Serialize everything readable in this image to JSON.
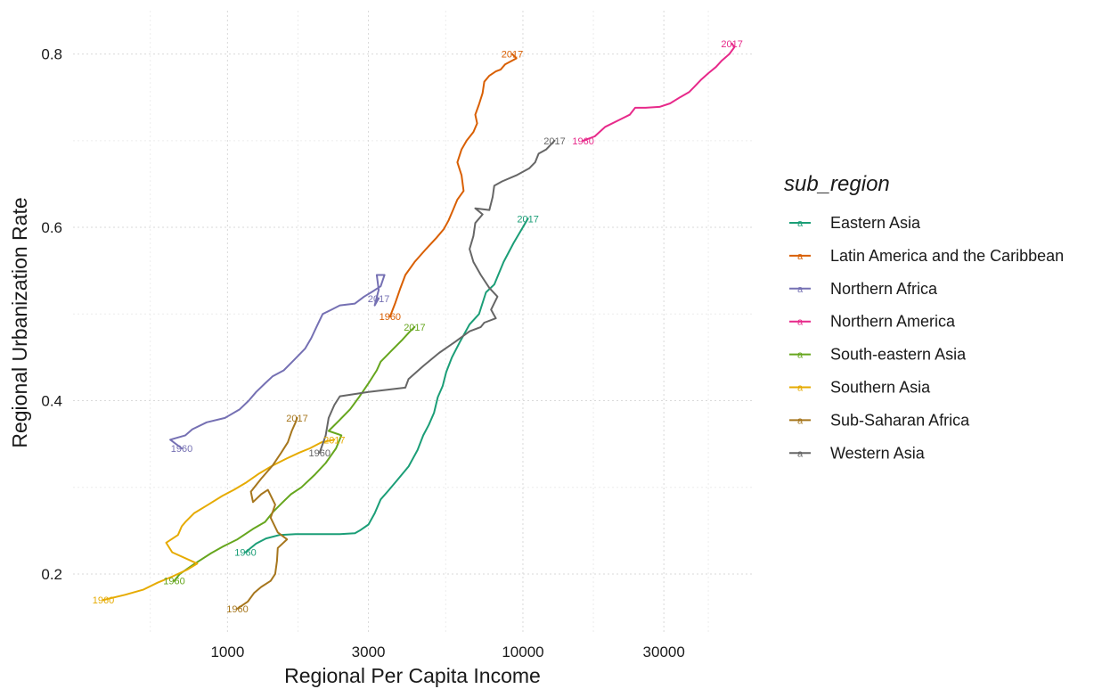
{
  "chart_data": {
    "type": "line",
    "xlabel": "Regional Per Capita Income",
    "ylabel": "Regional Urbanization Rate",
    "x_scale": "log10",
    "xlim": [
      300,
      60000
    ],
    "ylim": [
      0.13,
      0.85
    ],
    "x_ticks": [
      1000,
      3000,
      10000,
      30000
    ],
    "x_tick_labels": [
      "1000",
      "3000",
      "10000",
      "30000"
    ],
    "y_ticks": [
      0.2,
      0.4,
      0.6,
      0.8
    ],
    "y_tick_labels": [
      "0.2",
      "0.4",
      "0.6",
      "0.8"
    ],
    "grid": true,
    "legend": {
      "title": "sub_region",
      "position": "right"
    },
    "series": [
      {
        "name": "Eastern Asia",
        "color": "#1B9E77",
        "start_label": "1960",
        "end_label": "2017",
        "points": [
          [
            1150,
            0.225
          ],
          [
            1250,
            0.235
          ],
          [
            1350,
            0.241
          ],
          [
            1500,
            0.245
          ],
          [
            1700,
            0.246
          ],
          [
            2000,
            0.246
          ],
          [
            2400,
            0.246
          ],
          [
            2700,
            0.247
          ],
          [
            2800,
            0.25
          ],
          [
            3000,
            0.257
          ],
          [
            3150,
            0.27
          ],
          [
            3300,
            0.286
          ],
          [
            3500,
            0.296
          ],
          [
            3750,
            0.308
          ],
          [
            4100,
            0.324
          ],
          [
            4400,
            0.343
          ],
          [
            4600,
            0.36
          ],
          [
            4800,
            0.372
          ],
          [
            5000,
            0.386
          ],
          [
            5150,
            0.404
          ],
          [
            5350,
            0.417
          ],
          [
            5500,
            0.433
          ],
          [
            5750,
            0.45
          ],
          [
            6100,
            0.467
          ],
          [
            6600,
            0.488
          ],
          [
            7100,
            0.5
          ],
          [
            7500,
            0.525
          ],
          [
            8000,
            0.534
          ],
          [
            8600,
            0.56
          ],
          [
            9300,
            0.582
          ],
          [
            10400,
            0.61
          ]
        ]
      },
      {
        "name": "Latin America and the Caribbean",
        "color": "#D95F02",
        "start_label": "1960",
        "end_label": "2017",
        "points": [
          [
            3550,
            0.497
          ],
          [
            3700,
            0.513
          ],
          [
            3850,
            0.53
          ],
          [
            4000,
            0.545
          ],
          [
            4300,
            0.56
          ],
          [
            4700,
            0.575
          ],
          [
            5100,
            0.588
          ],
          [
            5400,
            0.598
          ],
          [
            5600,
            0.608
          ],
          [
            5800,
            0.62
          ],
          [
            6000,
            0.632
          ],
          [
            6300,
            0.642
          ],
          [
            6200,
            0.66
          ],
          [
            6000,
            0.675
          ],
          [
            6200,
            0.69
          ],
          [
            6450,
            0.7
          ],
          [
            6800,
            0.71
          ],
          [
            7000,
            0.72
          ],
          [
            6900,
            0.73
          ],
          [
            7100,
            0.742
          ],
          [
            7300,
            0.755
          ],
          [
            7400,
            0.768
          ],
          [
            7700,
            0.775
          ],
          [
            8100,
            0.78
          ],
          [
            8400,
            0.782
          ],
          [
            8700,
            0.788
          ],
          [
            9500,
            0.795
          ],
          [
            9200,
            0.8
          ]
        ]
      },
      {
        "name": "Northern Africa",
        "color": "#7570B3",
        "start_label": "1960",
        "end_label": "2017",
        "points": [
          [
            700,
            0.345
          ],
          [
            640,
            0.355
          ],
          [
            720,
            0.36
          ],
          [
            760,
            0.367
          ],
          [
            850,
            0.375
          ],
          [
            980,
            0.38
          ],
          [
            1100,
            0.39
          ],
          [
            1180,
            0.4
          ],
          [
            1250,
            0.41
          ],
          [
            1340,
            0.42
          ],
          [
            1420,
            0.428
          ],
          [
            1550,
            0.435
          ],
          [
            1680,
            0.447
          ],
          [
            1830,
            0.46
          ],
          [
            1920,
            0.472
          ],
          [
            2000,
            0.485
          ],
          [
            2100,
            0.5
          ],
          [
            2250,
            0.505
          ],
          [
            2400,
            0.51
          ],
          [
            2700,
            0.512
          ],
          [
            2900,
            0.52
          ],
          [
            3100,
            0.526
          ],
          [
            3300,
            0.532
          ],
          [
            3400,
            0.545
          ],
          [
            3200,
            0.545
          ],
          [
            3250,
            0.528
          ],
          [
            3150,
            0.51
          ],
          [
            3250,
            0.518
          ]
        ]
      },
      {
        "name": "Northern America",
        "color": "#E7298A",
        "start_label": "1960",
        "end_label": "2017",
        "points": [
          [
            16000,
            0.7
          ],
          [
            17500,
            0.705
          ],
          [
            19000,
            0.716
          ],
          [
            21500,
            0.725
          ],
          [
            23000,
            0.73
          ],
          [
            24000,
            0.738
          ],
          [
            26000,
            0.738
          ],
          [
            29000,
            0.739
          ],
          [
            31500,
            0.743
          ],
          [
            34000,
            0.75
          ],
          [
            36500,
            0.756
          ],
          [
            38000,
            0.762
          ],
          [
            40000,
            0.77
          ],
          [
            42500,
            0.778
          ],
          [
            45000,
            0.785
          ],
          [
            47000,
            0.792
          ],
          [
            50000,
            0.8
          ],
          [
            52000,
            0.808
          ],
          [
            51000,
            0.812
          ]
        ]
      },
      {
        "name": "South-eastern Asia",
        "color": "#66A61E",
        "start_label": "1960",
        "end_label": "2017",
        "points": [
          [
            660,
            0.192
          ],
          [
            690,
            0.2
          ],
          [
            760,
            0.21
          ],
          [
            880,
            0.224
          ],
          [
            970,
            0.232
          ],
          [
            1080,
            0.24
          ],
          [
            1220,
            0.252
          ],
          [
            1340,
            0.26
          ],
          [
            1430,
            0.272
          ],
          [
            1530,
            0.282
          ],
          [
            1640,
            0.292
          ],
          [
            1780,
            0.3
          ],
          [
            1980,
            0.315
          ],
          [
            2150,
            0.328
          ],
          [
            2330,
            0.345
          ],
          [
            2430,
            0.36
          ],
          [
            2200,
            0.365
          ],
          [
            2400,
            0.378
          ],
          [
            2600,
            0.39
          ],
          [
            2800,
            0.405
          ],
          [
            3000,
            0.42
          ],
          [
            3200,
            0.435
          ],
          [
            3300,
            0.445
          ],
          [
            3600,
            0.458
          ],
          [
            3900,
            0.47
          ],
          [
            4150,
            0.48
          ],
          [
            4300,
            0.485
          ]
        ]
      },
      {
        "name": "Southern Asia",
        "color": "#E6AB02",
        "start_label": "1960",
        "end_label": "2017",
        "points": [
          [
            380,
            0.17
          ],
          [
            450,
            0.176
          ],
          [
            520,
            0.182
          ],
          [
            580,
            0.19
          ],
          [
            650,
            0.197
          ],
          [
            730,
            0.205
          ],
          [
            790,
            0.212
          ],
          [
            650,
            0.225
          ],
          [
            620,
            0.236
          ],
          [
            680,
            0.245
          ],
          [
            700,
            0.255
          ],
          [
            720,
            0.26
          ],
          [
            770,
            0.27
          ],
          [
            860,
            0.28
          ],
          [
            960,
            0.29
          ],
          [
            1050,
            0.297
          ],
          [
            1150,
            0.305
          ],
          [
            1280,
            0.316
          ],
          [
            1420,
            0.325
          ],
          [
            1580,
            0.333
          ],
          [
            1750,
            0.34
          ],
          [
            1900,
            0.345
          ],
          [
            2080,
            0.352
          ],
          [
            2300,
            0.355
          ]
        ]
      },
      {
        "name": "Sub-Saharan Africa",
        "color": "#A6761D",
        "start_label": "1960",
        "end_label": "2017",
        "points": [
          [
            1080,
            0.16
          ],
          [
            1170,
            0.168
          ],
          [
            1230,
            0.178
          ],
          [
            1300,
            0.185
          ],
          [
            1400,
            0.192
          ],
          [
            1450,
            0.2
          ],
          [
            1470,
            0.215
          ],
          [
            1480,
            0.23
          ],
          [
            1590,
            0.24
          ],
          [
            1480,
            0.248
          ],
          [
            1400,
            0.265
          ],
          [
            1450,
            0.28
          ],
          [
            1370,
            0.297
          ],
          [
            1300,
            0.292
          ],
          [
            1220,
            0.283
          ],
          [
            1200,
            0.295
          ],
          [
            1300,
            0.31
          ],
          [
            1420,
            0.325
          ],
          [
            1520,
            0.34
          ],
          [
            1600,
            0.352
          ],
          [
            1650,
            0.365
          ],
          [
            1700,
            0.375
          ],
          [
            1720,
            0.38
          ]
        ]
      },
      {
        "name": "Western Asia",
        "color": "#666666",
        "start_label": "1960",
        "end_label": "2017",
        "points": [
          [
            2050,
            0.34
          ],
          [
            2150,
            0.36
          ],
          [
            2200,
            0.38
          ],
          [
            2300,
            0.395
          ],
          [
            2400,
            0.405
          ],
          [
            3000,
            0.41
          ],
          [
            4000,
            0.415
          ],
          [
            4100,
            0.425
          ],
          [
            4600,
            0.44
          ],
          [
            5200,
            0.455
          ],
          [
            5900,
            0.468
          ],
          [
            6600,
            0.48
          ],
          [
            7200,
            0.485
          ],
          [
            7400,
            0.49
          ],
          [
            8100,
            0.495
          ],
          [
            7800,
            0.505
          ],
          [
            8200,
            0.52
          ],
          [
            7700,
            0.53
          ],
          [
            7200,
            0.545
          ],
          [
            6800,
            0.56
          ],
          [
            6600,
            0.575
          ],
          [
            6800,
            0.59
          ],
          [
            6900,
            0.605
          ],
          [
            7300,
            0.615
          ],
          [
            6900,
            0.622
          ],
          [
            7700,
            0.62
          ],
          [
            7900,
            0.635
          ],
          [
            8000,
            0.648
          ],
          [
            8500,
            0.653
          ],
          [
            9500,
            0.66
          ],
          [
            10500,
            0.668
          ],
          [
            11000,
            0.675
          ],
          [
            11300,
            0.685
          ],
          [
            12000,
            0.69
          ],
          [
            12800,
            0.7
          ]
        ]
      }
    ]
  }
}
